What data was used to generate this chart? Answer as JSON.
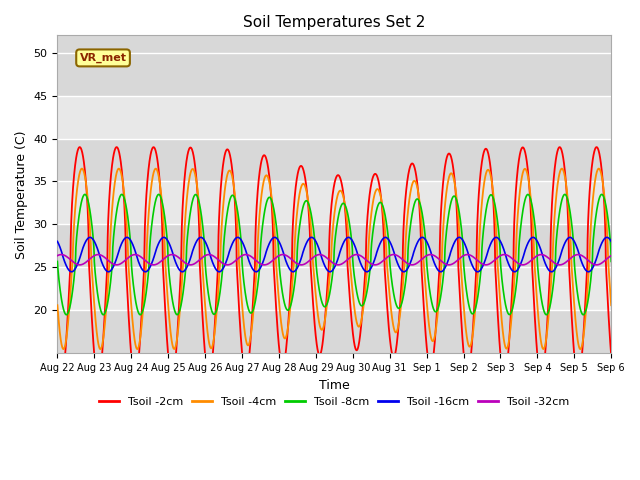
{
  "title": "Soil Temperatures Set 2",
  "xlabel": "Time",
  "ylabel": "Soil Temperature (C)",
  "ylim": [
    15,
    52
  ],
  "yticks": [
    20,
    25,
    30,
    35,
    40,
    45,
    50
  ],
  "bg_color": "#dcdcdc",
  "plot_bg_color": "#dcdcdc",
  "grid_color": "#ffffff",
  "series": [
    {
      "label": "Tsoil -2cm",
      "color": "#ff0000"
    },
    {
      "label": "Tsoil -4cm",
      "color": "#ff8c00"
    },
    {
      "label": "Tsoil -8cm",
      "color": "#00cc00"
    },
    {
      "label": "Tsoil -16cm",
      "color": "#0000ee"
    },
    {
      "label": "Tsoil -32cm",
      "color": "#bb00bb"
    }
  ],
  "annotation_text": "VR_met",
  "n_days": 15,
  "samples_per_day": 144,
  "tick_labels": [
    "Aug 22",
    "Aug 23",
    "Aug 24",
    "Aug 25",
    "Aug 26",
    "Aug 27",
    "Aug 28",
    "Aug 29",
    "Aug 30",
    "Aug 31",
    "Sep 1",
    "Sep 2",
    "Sep 3",
    "Sep 4",
    "Sep 5",
    "Sep 6"
  ],
  "amplitudes": [
    13.5,
    10.5,
    7.0,
    2.0,
    0.6
  ],
  "phase_offsets": [
    0.0,
    0.06,
    0.14,
    0.28,
    0.5
  ],
  "base_temps": [
    25.5,
    26.0,
    26.5,
    26.5,
    25.9
  ],
  "sharpness": [
    4.0,
    3.0,
    2.0,
    1.2,
    1.0
  ],
  "peak_hour": 14.5,
  "band_colors": [
    "#d8d8d8",
    "#e8e8e8"
  ],
  "band_ranges": [
    [
      15,
      20
    ],
    [
      20,
      25
    ],
    [
      25,
      30
    ],
    [
      30,
      35
    ],
    [
      35,
      40
    ],
    [
      40,
      45
    ],
    [
      45,
      52
    ]
  ]
}
